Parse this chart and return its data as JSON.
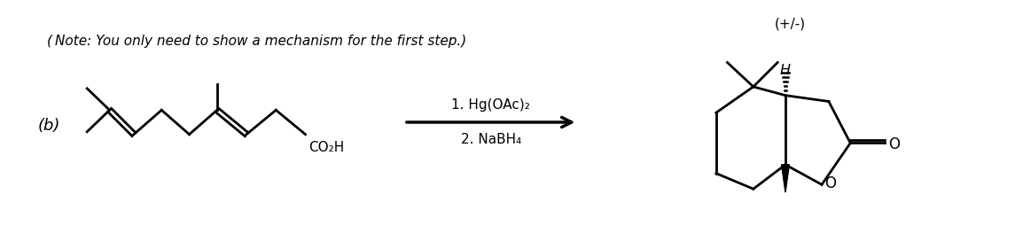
{
  "bg_color": "#ffffff",
  "label_b": "(b)",
  "reagent1": "1. Hg(OAc)₂",
  "reagent2": "2. NaBH₄",
  "note": "( Note: You only need to show a mechanism for the first step.)",
  "racemic": "(+/-)",
  "fig_width": 11.45,
  "fig_height": 2.72,
  "dpi": 100
}
